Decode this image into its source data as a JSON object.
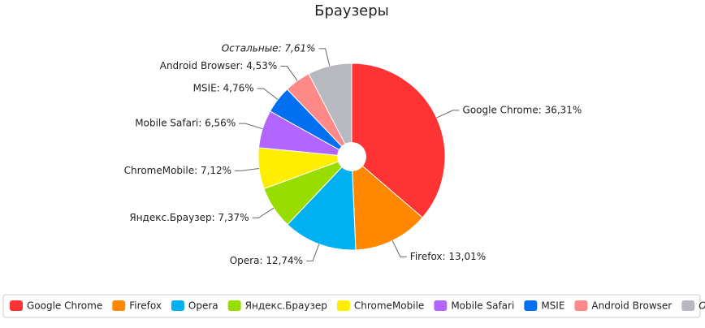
{
  "chart_data": {
    "type": "pie",
    "title": "Браузеры",
    "categories": [
      "Google Chrome",
      "Firefox",
      "Opera",
      "Яндекс.Браузер",
      "ChromeMobile",
      "Mobile Safari",
      "MSIE",
      "Android Browser",
      "Остальные"
    ],
    "values": [
      36.31,
      13.01,
      12.74,
      7.37,
      7.12,
      6.56,
      4.76,
      4.53,
      7.61
    ],
    "value_labels": [
      "Google Chrome: 36,31%",
      "Firefox: 13,01%",
      "Opera: 12,74%",
      "Яндекс.Браузер: 7,37%",
      "ChromeMobile: 7,12%",
      "Mobile Safari: 6,56%",
      "MSIE: 4,76%",
      "Android Browser: 4,53%",
      "Остальные: 7,61%"
    ],
    "colors": [
      "#ff3333",
      "#ff8800",
      "#00b0f0",
      "#99dd00",
      "#ffee00",
      "#b366ff",
      "#0070f0",
      "#ff8888",
      "#b8b8c0"
    ],
    "legend": "bottom"
  }
}
